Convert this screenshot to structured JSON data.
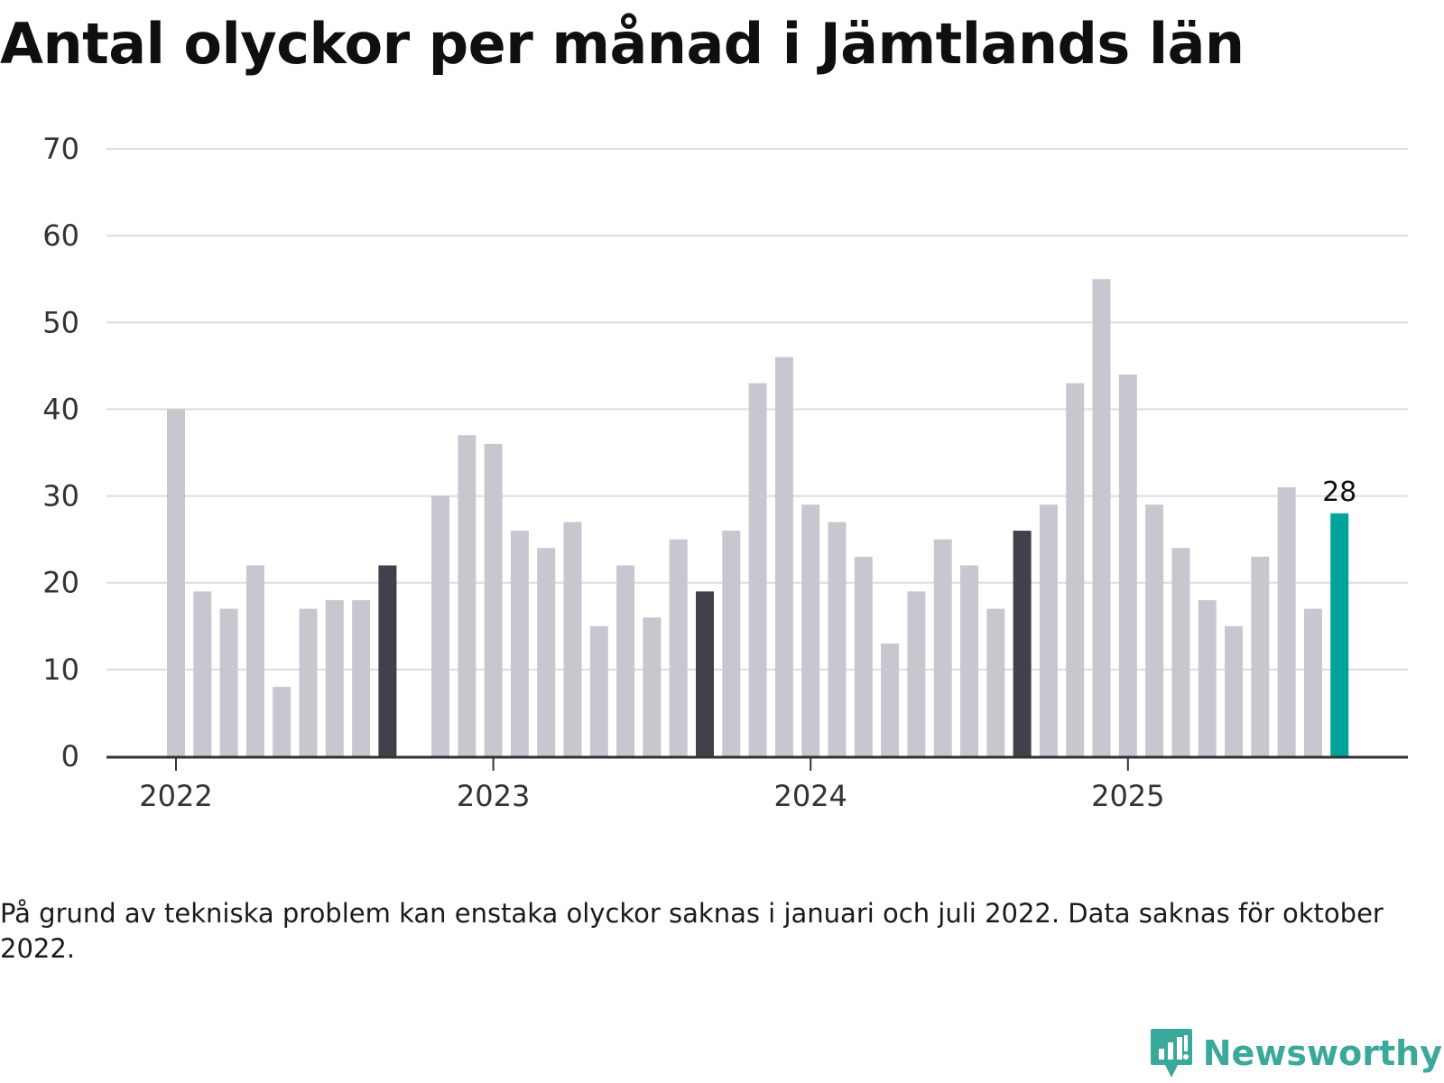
{
  "title": "Antal olyckor per månad i Jämtlands län",
  "footnote": "På grund av tekniska problem kan enstaka olyckor saknas i januari och juli 2022. Data saknas för oktober 2022.",
  "brand": "Newsworthy",
  "colors": {
    "bar": "#c8c7cf",
    "highlight": "#41404b",
    "latest": "#00a39a",
    "grid": "#dddddd",
    "axis": "#333333",
    "brand": "#3aa89b"
  },
  "chart_data": {
    "type": "bar",
    "title": "Antal olyckor per månad i Jämtlands län",
    "xlabel": "",
    "ylabel": "",
    "ylim": [
      0,
      70
    ],
    "yticks": [
      0,
      10,
      20,
      30,
      40,
      50,
      60,
      70
    ],
    "grid": true,
    "x_tick_labels": [
      {
        "label": "2022",
        "index": 0
      },
      {
        "label": "2023",
        "index": 12
      },
      {
        "label": "2024",
        "index": 24
      },
      {
        "label": "2025",
        "index": 36
      }
    ],
    "categories": [
      "2022-01",
      "2022-02",
      "2022-03",
      "2022-04",
      "2022-05",
      "2022-06",
      "2022-07",
      "2022-08",
      "2022-09",
      "2022-10",
      "2022-11",
      "2022-12",
      "2023-01",
      "2023-02",
      "2023-03",
      "2023-04",
      "2023-05",
      "2023-06",
      "2023-07",
      "2023-08",
      "2023-09",
      "2023-10",
      "2023-11",
      "2023-12",
      "2024-01",
      "2024-02",
      "2024-03",
      "2024-04",
      "2024-05",
      "2024-06",
      "2024-07",
      "2024-08",
      "2024-09",
      "2024-10",
      "2024-11",
      "2024-12",
      "2025-01",
      "2025-02",
      "2025-03",
      "2025-04",
      "2025-05",
      "2025-06",
      "2025-07",
      "2025-08",
      "2025-09"
    ],
    "values": [
      40,
      19,
      17,
      22,
      8,
      17,
      18,
      18,
      22,
      null,
      30,
      37,
      36,
      26,
      24,
      27,
      15,
      22,
      16,
      25,
      19,
      26,
      43,
      46,
      29,
      27,
      23,
      13,
      19,
      25,
      22,
      17,
      26,
      29,
      43,
      55,
      44,
      29,
      24,
      18,
      15,
      23,
      31,
      17,
      28
    ],
    "highlighted_months": [
      "2022-09",
      "2023-09",
      "2024-09"
    ],
    "latest_month": "2025-09",
    "data_labels": [
      {
        "category": "2025-09",
        "text": "28"
      }
    ]
  }
}
